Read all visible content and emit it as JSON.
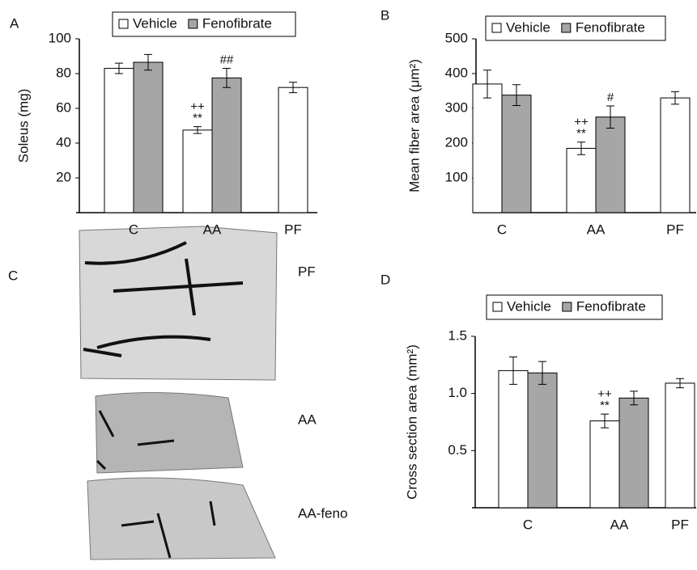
{
  "chart_data": [
    {
      "type": "bar",
      "panel": "A",
      "ylabel": "Soleus (mg)",
      "categories": [
        "C",
        "AA",
        "PF"
      ],
      "series": [
        {
          "name": "Vehicle",
          "color": "#ffffff",
          "values": [
            83,
            47.5,
            72
          ],
          "errors": [
            3,
            2,
            3
          ],
          "annotations": [
            null,
            [
              "++",
              "**"
            ],
            null
          ]
        },
        {
          "name": "Fenofibrate",
          "color": "#a6a6a6",
          "values": [
            86.5,
            77.5,
            null
          ],
          "errors": [
            4.5,
            5.5,
            null
          ],
          "annotations": [
            null,
            [
              "##"
            ],
            null
          ]
        }
      ],
      "ylim": [
        0,
        100
      ],
      "yticks": [
        20,
        40,
        60,
        80,
        100
      ]
    },
    {
      "type": "bar",
      "panel": "B",
      "ylabel": "Mean fiber area (μm²)",
      "categories": [
        "C",
        "AA",
        "PF"
      ],
      "series": [
        {
          "name": "Vehicle",
          "color": "#ffffff",
          "values": [
            370,
            185,
            330
          ],
          "errors": [
            40,
            18,
            18
          ],
          "annotations": [
            null,
            [
              "++",
              "**"
            ],
            null
          ]
        },
        {
          "name": "Fenofibrate",
          "color": "#a6a6a6",
          "values": [
            338,
            275,
            null
          ],
          "errors": [
            30,
            32,
            null
          ],
          "annotations": [
            null,
            [
              "#"
            ],
            null
          ]
        }
      ],
      "ylim": [
        0,
        500
      ],
      "yticks": [
        100,
        200,
        300,
        400,
        500
      ]
    },
    {
      "type": "bar",
      "panel": "D",
      "ylabel": "Cross section area (mm²)",
      "categories": [
        "C",
        "AA",
        "PF"
      ],
      "series": [
        {
          "name": "Vehicle",
          "color": "#ffffff",
          "values": [
            1.2,
            0.76,
            1.09
          ],
          "errors": [
            0.12,
            0.06,
            0.04
          ],
          "annotations": [
            null,
            [
              "++",
              "**"
            ],
            null
          ]
        },
        {
          "name": "Fenofibrate",
          "color": "#a6a6a6",
          "values": [
            1.18,
            0.96,
            null
          ],
          "errors": [
            0.1,
            0.06,
            null
          ],
          "annotations": [
            null,
            null,
            null
          ]
        }
      ],
      "ylim": [
        0,
        1.5
      ],
      "yticks": [
        0.5,
        {
          "value": 1,
          "label": "1.0"
        },
        1.5
      ]
    }
  ],
  "image_panel": {
    "panel": "C",
    "captions": [
      "PF",
      "AA",
      "AA-feno"
    ]
  }
}
